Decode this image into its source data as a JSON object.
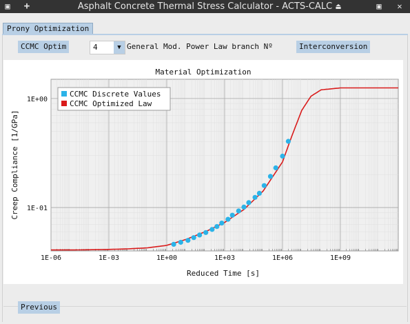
{
  "window": {
    "title": "Asphalt Concrete Thermal Stress Calculator - ACTS-CALC",
    "menu_glyph": "▣",
    "new_glyph": "+",
    "up_glyph": "⏏",
    "restore_glyph": "▣",
    "close_glyph": "✕"
  },
  "tabs": [
    {
      "label": "Prony Optimization",
      "active": true
    }
  ],
  "toolbar": {
    "ccmc_optim_label": "CCMC Optim",
    "branch_count_value": "4",
    "branch_label": "General Mod. Power Law branch Nº",
    "interconversion_label": "Interconversion"
  },
  "footer": {
    "previous_label": "Previous"
  },
  "colors": {
    "accent": "#b8cfe5",
    "discrete": "#2bb3e8",
    "optimized": "#d91a1a"
  },
  "chart_data": {
    "type": "scatter",
    "title": "Material Optimization",
    "xlabel": "Reduced Time [s]",
    "ylabel": "Creep Compliance [1/GPa]",
    "xscale": "log",
    "yscale": "log",
    "xlim": [
      1e-06,
      1000000000000.0
    ],
    "ylim": [
      0.04,
      1.5
    ],
    "xticks": [
      1e-06,
      0.001,
      1.0,
      1000.0,
      1000000.0,
      1000000000.0
    ],
    "xtick_labels": [
      "1E-06",
      "1E-03",
      "1E+00",
      "1E+03",
      "1E+06",
      "1E+09"
    ],
    "yticks": [
      0.1,
      1
    ],
    "ytick_labels": [
      "1E-01",
      "1E+00"
    ],
    "grid": true,
    "legend_position": "top-left",
    "series": [
      {
        "name": "CCMC Discrete Values",
        "kind": "markers",
        "color": "#2bb3e8",
        "x": [
          2.3,
          5.3,
          12.6,
          25.1,
          50.1,
          105.9,
          223.9,
          398.1,
          707.9,
          1496,
          2512,
          5309,
          10000,
          17783,
          37584,
          63096,
          112202,
          237137,
          446684,
          1000000,
          1995262
        ],
        "y": [
          0.046,
          0.048,
          0.05,
          0.053,
          0.056,
          0.059,
          0.063,
          0.067,
          0.072,
          0.078,
          0.085,
          0.093,
          0.101,
          0.111,
          0.124,
          0.135,
          0.159,
          0.193,
          0.231,
          0.296,
          0.405
        ]
      },
      {
        "name": "CCMC Optimized Law",
        "kind": "line",
        "color": "#d91a1a",
        "x": [
          1e-06,
          1e-05,
          0.0001,
          0.001,
          0.01,
          0.1,
          1,
          10,
          100,
          1000,
          10000.0,
          100000.0,
          1000000.0,
          3000000.0,
          10000000.0,
          30000000.0,
          100000000.0,
          1000000000.0,
          10000000000.0,
          100000000000.0,
          1000000000000.0
        ],
        "y": [
          0.0408,
          0.0408,
          0.041,
          0.0413,
          0.0418,
          0.0427,
          0.045,
          0.051,
          0.06,
          0.073,
          0.096,
          0.142,
          0.262,
          0.45,
          0.78,
          1.05,
          1.2,
          1.25,
          1.25,
          1.25,
          1.25
        ]
      }
    ]
  }
}
